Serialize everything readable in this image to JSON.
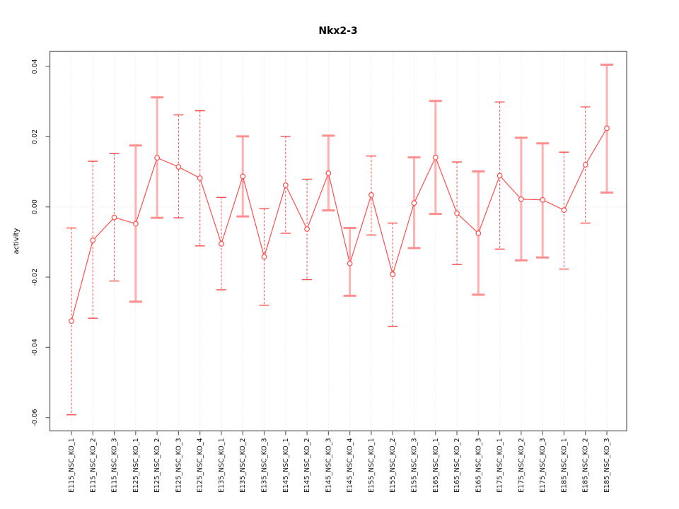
{
  "title": "Nkx2-3",
  "colors": {
    "line_red": "#ff4d4d",
    "bar_pink": "#ffb0b0",
    "bar_pink_cap": "#ff8f8f",
    "grid_grey": "#dcdcdc",
    "axis_grey": "#666666",
    "marker_fill": "#ffffff"
  },
  "chart_data": {
    "type": "line",
    "subtype": "error-bar-point-line",
    "title": "Nkx2-3",
    "xlabel": "",
    "ylabel": "activity",
    "ylim": [
      -0.0638,
      0.0443
    ],
    "yticks": [
      -0.06,
      -0.04,
      -0.02,
      0.0,
      0.02,
      0.04
    ],
    "ytick_labels": [
      "-0.06",
      "-0.04",
      "-0.02",
      "0.00",
      "0.02",
      "0.04"
    ],
    "grid": "vertical dotted line at every category; dotted horizontal line at y=0; full box border; no legend",
    "legend": "none",
    "categories": [
      "E115_NSC_KO_1",
      "E115_NSC_KO_2",
      "E115_NSC_KO_3",
      "E125_NSC_KO_1",
      "E125_NSC_KO_2",
      "E125_NSC_KO_3",
      "E125_NSC_KO_4",
      "E135_NSC_KO_1",
      "E135_NSC_KO_2",
      "E135_NSC_KO_3",
      "E145_NSC_KO_1",
      "E145_NSC_KO_2",
      "E145_NSC_KO_3",
      "E145_NSC_KO_4",
      "E155_NSC_KO_1",
      "E155_NSC_KO_2",
      "E155_NSC_KO_3",
      "E165_NSC_KO_1",
      "E165_NSC_KO_2",
      "E165_NSC_KO_3",
      "E175_NSC_KO_1",
      "E175_NSC_KO_2",
      "E175_NSC_KO_3",
      "E185_NSC_KO_1",
      "E185_NSC_KO_2",
      "E185_NSC_KO_3"
    ],
    "series": [
      {
        "name": "activity",
        "marker": "open-circle",
        "values": [
          -0.0325,
          -0.0095,
          -0.003,
          -0.0048,
          0.014,
          0.0114,
          0.0082,
          -0.0105,
          0.0087,
          -0.0142,
          0.0062,
          -0.0063,
          0.0096,
          -0.0161,
          0.0034,
          -0.0192,
          0.0011,
          0.0141,
          -0.0018,
          -0.0075,
          0.0089,
          0.0022,
          0.002,
          -0.0009,
          0.012,
          0.0224
        ],
        "ci_high": [
          -0.006,
          0.013,
          0.0152,
          0.0175,
          0.0312,
          0.0262,
          0.0274,
          0.0027,
          0.0201,
          -0.0005,
          0.0201,
          0.0079,
          0.0203,
          -0.006,
          0.0145,
          -0.0046,
          0.0141,
          0.0302,
          0.0128,
          0.0101,
          0.0299,
          0.0197,
          0.0181,
          0.0156,
          0.0285,
          0.0405
        ],
        "ci_low": [
          -0.0592,
          -0.0317,
          -0.0211,
          -0.027,
          -0.0031,
          -0.0031,
          -0.0111,
          -0.0236,
          -0.0027,
          -0.028,
          -0.0075,
          -0.0207,
          -0.001,
          -0.0253,
          -0.008,
          -0.034,
          -0.0117,
          -0.002,
          -0.0164,
          -0.025,
          -0.012,
          -0.0152,
          -0.0144,
          -0.0177,
          -0.0046,
          0.0041
        ],
        "bar_styles": [
          "dashed",
          "dashed",
          "dashed",
          "thick",
          "thick",
          "dashed",
          "dashed",
          "dashed",
          "thick",
          "dashed",
          "dashed",
          "dashed",
          "thick",
          "thick",
          "dashed",
          "dashed",
          "thick",
          "thick",
          "dashed",
          "thick",
          "dashed",
          "thick",
          "thick",
          "dashed",
          "dashed",
          "thick"
        ]
      }
    ]
  }
}
